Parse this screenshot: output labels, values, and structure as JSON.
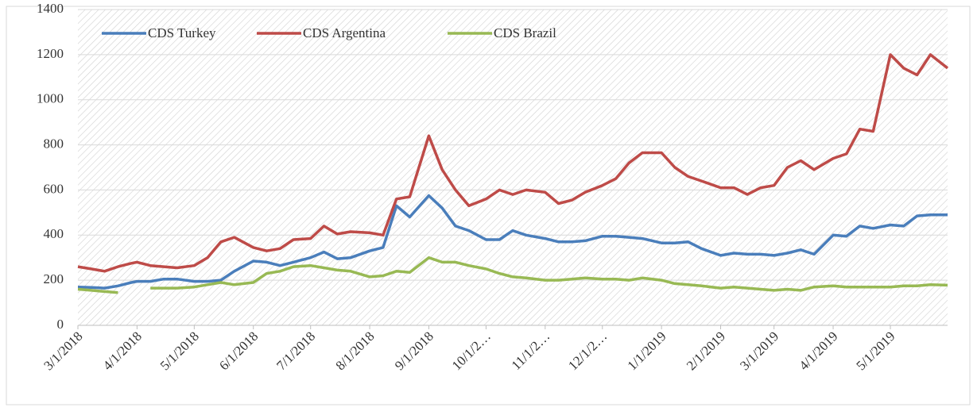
{
  "chart_data": {
    "type": "line",
    "x": [
      "3/1/2018",
      "3/8/2018",
      "3/15/2018",
      "3/22/2018",
      "3/29/2018",
      "4/1/2018",
      "4/8/2018",
      "4/15/2018",
      "4/22/2018",
      "5/1/2018",
      "5/8/2018",
      "5/15/2018",
      "5/22/2018",
      "6/1/2018",
      "6/8/2018",
      "6/15/2018",
      "6/22/2018",
      "7/1/2018",
      "7/8/2018",
      "7/15/2018",
      "7/22/2018",
      "8/1/2018",
      "8/8/2018",
      "8/15/2018",
      "8/22/2018",
      "9/1/2018",
      "9/8/2018",
      "9/15/2018",
      "9/22/2018",
      "10/1/2018",
      "10/8/2018",
      "10/15/2018",
      "10/22/2018",
      "11/1/2018",
      "11/8/2018",
      "11/15/2018",
      "11/22/2018",
      "12/1/2018",
      "12/8/2018",
      "12/15/2018",
      "12/22/2018",
      "1/1/2019",
      "1/8/2019",
      "1/15/2019",
      "1/22/2019",
      "2/1/2019",
      "2/8/2019",
      "2/15/2019",
      "2/22/2019",
      "3/1/2019",
      "3/8/2019",
      "3/15/2019",
      "3/22/2019",
      "4/1/2019",
      "4/8/2019",
      "4/15/2019",
      "4/22/2019",
      "5/1/2019",
      "5/8/2019",
      "5/15/2019",
      "5/22/2019",
      "5/31/2019"
    ],
    "series": [
      {
        "name": "CDS Turkey",
        "color": "#4a7ebb",
        "values": [
          170,
          168,
          165,
          175,
          190,
          195,
          195,
          205,
          205,
          195,
          195,
          200,
          240,
          285,
          280,
          265,
          280,
          300,
          325,
          295,
          300,
          330,
          345,
          530,
          480,
          575,
          520,
          440,
          420,
          380,
          380,
          420,
          400,
          385,
          370,
          370,
          375,
          395,
          395,
          390,
          385,
          365,
          365,
          370,
          340,
          310,
          320,
          315,
          315,
          310,
          320,
          335,
          315,
          400,
          395,
          440,
          430,
          445,
          440,
          485,
          490,
          490
        ]
      },
      {
        "name": "CDS Argentina",
        "color": "#be4b48",
        "values": [
          260,
          250,
          240,
          260,
          275,
          280,
          265,
          260,
          255,
          265,
          300,
          370,
          390,
          345,
          330,
          340,
          380,
          385,
          440,
          405,
          415,
          410,
          400,
          560,
          570,
          840,
          690,
          600,
          530,
          560,
          600,
          580,
          600,
          590,
          540,
          555,
          590,
          620,
          650,
          720,
          765,
          765,
          700,
          660,
          640,
          610,
          610,
          580,
          610,
          620,
          700,
          730,
          690,
          740,
          760,
          870,
          860,
          1200,
          1140,
          1110,
          1200,
          1140
        ]
      },
      {
        "name": "CDS Brazil",
        "color": "#98b954",
        "values": [
          160,
          155,
          150,
          145,
          null,
          null,
          165,
          165,
          165,
          170,
          180,
          190,
          180,
          190,
          230,
          240,
          260,
          265,
          255,
          245,
          240,
          215,
          220,
          240,
          235,
          300,
          280,
          280,
          265,
          250,
          230,
          215,
          210,
          200,
          200,
          205,
          210,
          205,
          205,
          200,
          210,
          200,
          185,
          180,
          175,
          165,
          170,
          165,
          160,
          155,
          160,
          155,
          170,
          175,
          170,
          170,
          170,
          170,
          175,
          175,
          180,
          178
        ]
      }
    ],
    "xlim": [
      "3/1/2018",
      "5/31/2019"
    ],
    "xticks": [
      "3/1/2018",
      "4/1/2018",
      "5/1/2018",
      "6/1/2018",
      "7/1/2018",
      "8/1/2018",
      "9/1/2018",
      {
        "value": "10/1/2018",
        "label": "10/1/2…"
      },
      {
        "value": "11/1/2018",
        "label": "11/1/2…"
      },
      {
        "value": "12/1/2018",
        "label": "12/1/2…"
      },
      "1/1/2019",
      "2/1/2019",
      "3/1/2019",
      "4/1/2019",
      "5/1/2019"
    ],
    "ylim": [
      0,
      1400
    ],
    "yticks": [
      0,
      200,
      400,
      600,
      800,
      1000,
      1200,
      1400
    ],
    "grid": true,
    "legend": "upper left"
  }
}
